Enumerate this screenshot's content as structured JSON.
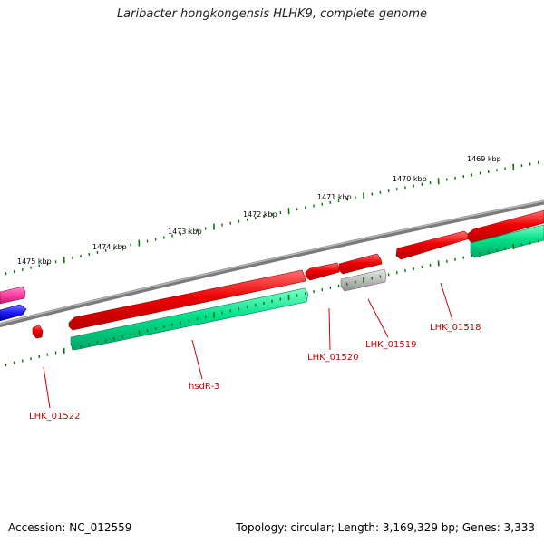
{
  "title": "Laribacter hongkongensis HLHK9, complete genome",
  "ruler": {
    "kbp_labels": [
      "1475 kbp",
      "1474 kbp",
      "1473 kbp",
      "1472 kbp",
      "1471 kbp",
      "1470 kbp",
      "1469 kbp"
    ]
  },
  "genes": {
    "labels": [
      "LHK_01522",
      "hsdR-3",
      "LHK_01520",
      "LHK_01519",
      "LHK_01518"
    ]
  },
  "colors": {
    "forward_gene": "#e60000",
    "reverse_gene": "#00e08a",
    "pseudo_gene": "#bdbdbd",
    "magenta_gene": "#ff3fa0",
    "blue_gene": "#1a1aff",
    "backbone": "#808080",
    "ruler_ticks": "#007a00",
    "label_color": "#cc0000"
  },
  "footer": {
    "accession": "Accession: NC_012559",
    "summary": "Topology: circular; Length: 3,169,329 bp; Genes: 3,333"
  }
}
